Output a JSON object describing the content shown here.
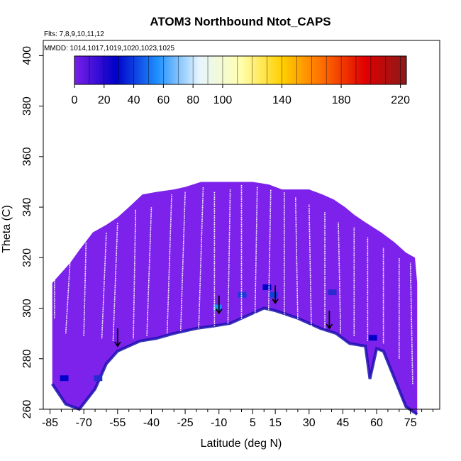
{
  "chart_data": {
    "type": "heatmap",
    "title": "ATOM3 Northbound Ntot_CAPS",
    "xlabel": "Latitude (deg N)",
    "ylabel": "Theta (C)",
    "xlim": [
      -88,
      88
    ],
    "ylim": [
      260,
      406
    ],
    "x_ticks": [
      -85,
      -70,
      -55,
      -40,
      -25,
      -10,
      5,
      15,
      30,
      45,
      60,
      75
    ],
    "y_ticks": [
      260,
      280,
      300,
      320,
      340,
      360,
      380,
      400
    ],
    "annotations": {
      "flights": "Flts: 7,8,9,10,11,12",
      "dates": "MMDD: 1014,1017,1019,1020,1023,1025"
    },
    "colorbar": {
      "ticks": [
        0,
        20,
        40,
        60,
        80,
        100,
        140,
        180,
        220
      ],
      "range": [
        0,
        224
      ],
      "colors": [
        "#7b1fe8",
        "#0000c8",
        "#1e90ff",
        "#e6f5ff",
        "#ffffb0",
        "#ffd000",
        "#ff6a00",
        "#e00000",
        "#8b1a1a"
      ]
    },
    "field_color": "#7d22ea",
    "curtain_top": [
      [
        -84,
        310
      ],
      [
        -80,
        314
      ],
      [
        -76,
        318
      ],
      [
        -72,
        323
      ],
      [
        -66,
        330
      ],
      [
        -60,
        333
      ],
      [
        -55,
        336
      ],
      [
        -50,
        340
      ],
      [
        -44,
        345
      ],
      [
        -38,
        346
      ],
      [
        -30,
        347
      ],
      [
        -25,
        348
      ],
      [
        -18,
        350
      ],
      [
        -12,
        350
      ],
      [
        -5,
        350
      ],
      [
        0,
        350
      ],
      [
        5,
        350
      ],
      [
        12,
        349
      ],
      [
        18,
        347
      ],
      [
        24,
        347
      ],
      [
        30,
        347
      ],
      [
        36,
        345
      ],
      [
        41,
        343
      ],
      [
        46,
        340
      ],
      [
        50,
        337
      ],
      [
        55,
        334
      ],
      [
        62,
        330
      ],
      [
        68,
        326
      ],
      [
        73,
        322
      ],
      [
        77,
        320
      ],
      [
        78,
        310
      ]
    ],
    "curtain_bottom": [
      [
        78,
        258
      ],
      [
        73,
        261
      ],
      [
        68,
        272
      ],
      [
        63,
        283
      ],
      [
        60,
        284
      ],
      [
        57,
        272
      ],
      [
        55,
        285
      ],
      [
        48,
        286
      ],
      [
        42,
        290
      ],
      [
        35,
        292
      ],
      [
        25,
        296
      ],
      [
        15,
        299
      ],
      [
        10,
        300
      ],
      [
        5,
        298
      ],
      [
        -5,
        294
      ],
      [
        -12,
        293
      ],
      [
        -20,
        292
      ],
      [
        -30,
        290
      ],
      [
        -38,
        288
      ],
      [
        -45,
        287
      ],
      [
        -55,
        283
      ],
      [
        -60,
        278
      ],
      [
        -65,
        268
      ],
      [
        -72,
        260
      ],
      [
        -78,
        262
      ],
      [
        -84,
        270
      ]
    ],
    "arrows": [
      {
        "lat": -55,
        "theta": 285
      },
      {
        "lat": -10,
        "theta": 298
      },
      {
        "lat": 15,
        "theta": 302
      },
      {
        "lat": 39,
        "theta": 292
      }
    ],
    "profiles": [
      {
        "from": [
          -83,
          296
        ],
        "to": [
          -83,
          312
        ]
      },
      {
        "from": [
          -78,
          290
        ],
        "to": [
          -76,
          320
        ]
      },
      {
        "from": [
          -70,
          289
        ],
        "to": [
          -69,
          326
        ]
      },
      {
        "from": [
          -62,
          288
        ],
        "to": [
          -60,
          330
        ]
      },
      {
        "from": [
          -57,
          287
        ],
        "to": [
          -55,
          334
        ]
      },
      {
        "from": [
          -48,
          288
        ],
        "to": [
          -47,
          339
        ]
      },
      {
        "from": [
          -42,
          289
        ],
        "to": [
          -40,
          340
        ]
      },
      {
        "from": [
          -33,
          290
        ],
        "to": [
          -31,
          345
        ]
      },
      {
        "from": [
          -27,
          291
        ],
        "to": [
          -25,
          346
        ]
      },
      {
        "from": [
          -19,
          292
        ],
        "to": [
          -17,
          348
        ]
      },
      {
        "from": [
          -12,
          293
        ],
        "to": [
          -12,
          346
        ]
      },
      {
        "from": [
          -6,
          294
        ],
        "to": [
          -5,
          347
        ]
      },
      {
        "from": [
          0,
          295
        ],
        "to": [
          0,
          349
        ]
      },
      {
        "from": [
          6,
          297
        ],
        "to": [
          7,
          348
        ]
      },
      {
        "from": [
          12,
          298
        ],
        "to": [
          13,
          347
        ]
      },
      {
        "from": [
          19,
          297
        ],
        "to": [
          19,
          346
        ]
      },
      {
        "from": [
          25,
          295
        ],
        "to": [
          24,
          344
        ]
      },
      {
        "from": [
          31,
          293
        ],
        "to": [
          30,
          341
        ]
      },
      {
        "from": [
          37,
          292
        ],
        "to": [
          37,
          338
        ]
      },
      {
        "from": [
          44,
          290
        ],
        "to": [
          43,
          334
        ]
      },
      {
        "from": [
          50,
          289
        ],
        "to": [
          50,
          332
        ]
      },
      {
        "from": [
          56,
          287
        ],
        "to": [
          56,
          328
        ]
      },
      {
        "from": [
          63,
          286
        ],
        "to": [
          63,
          324
        ]
      },
      {
        "from": [
          70,
          280
        ],
        "to": [
          70,
          320
        ]
      },
      {
        "from": [
          76,
          270
        ],
        "to": [
          75,
          318
        ]
      }
    ]
  }
}
